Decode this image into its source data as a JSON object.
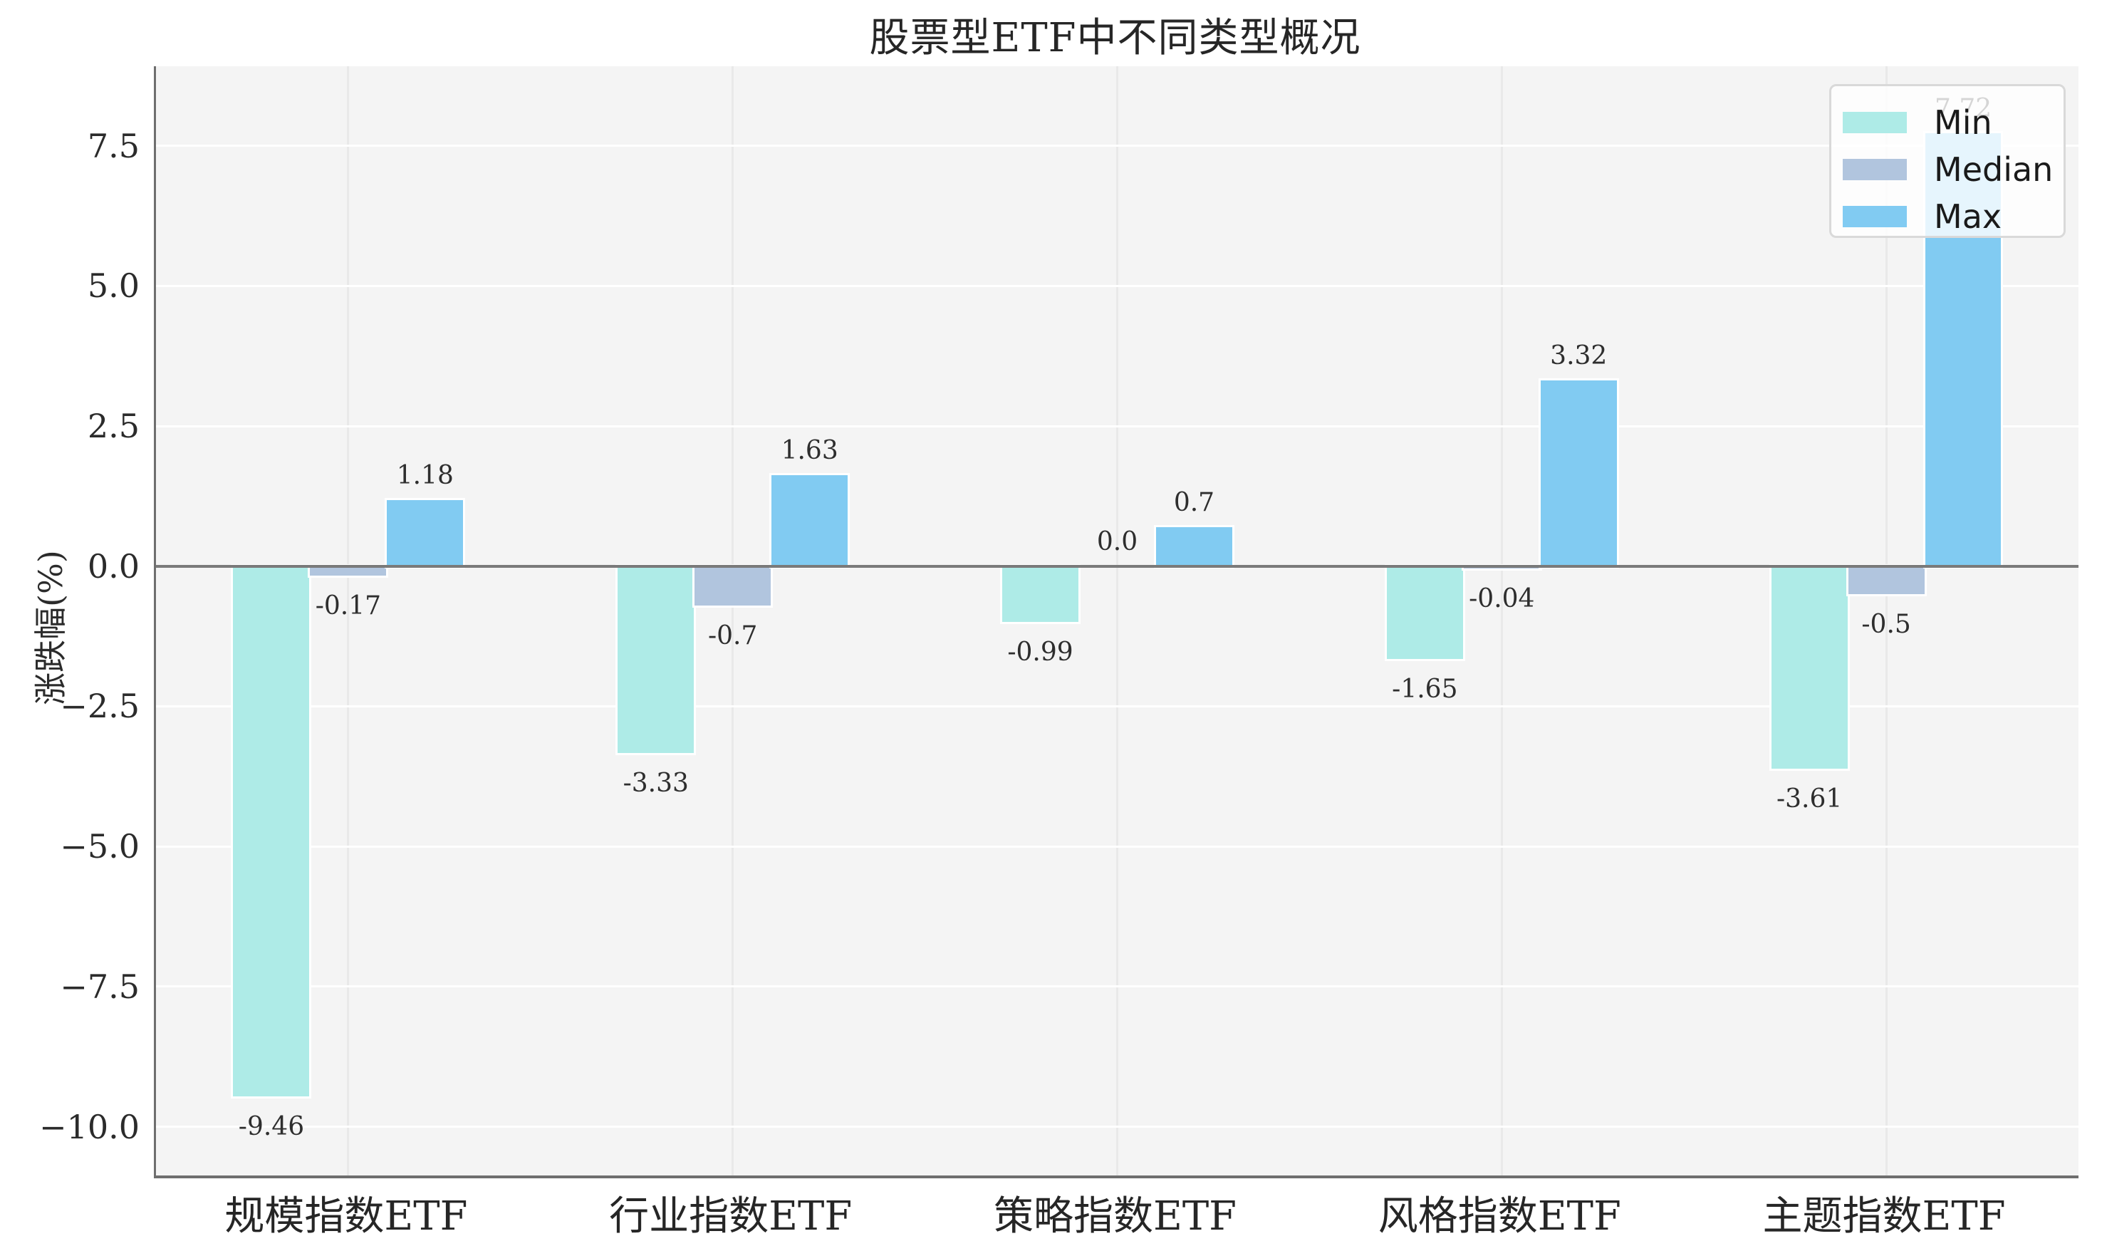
{
  "figure": {
    "background": "#ffffff",
    "plot_background": "#f4f4f4",
    "grid_h_color": "#ffffff",
    "grid_v_color": "#e9e9e9",
    "zero_line_color": "#7a7a7a",
    "spine_color": "#6e6e6e"
  },
  "chart_data": {
    "type": "bar",
    "title": "股票型ETF中不同类型概况",
    "xlabel": "",
    "ylabel": "涨跌幅(%)",
    "categories": [
      "规模指数ETF",
      "行业指数ETF",
      "策略指数ETF",
      "风格指数ETF",
      "主题指数ETF"
    ],
    "series": [
      {
        "name": "Min",
        "color": "#aeebe7",
        "values": [
          -9.46,
          -3.33,
          -0.99,
          -1.65,
          -3.61
        ],
        "labels": [
          "-9.46",
          "-3.33",
          "-0.99",
          "-1.65",
          "-3.61"
        ]
      },
      {
        "name": "Median",
        "color": "#b1c5de",
        "values": [
          -0.17,
          -0.7,
          0.0,
          -0.04,
          -0.5
        ],
        "labels": [
          "-0.17",
          "-0.7",
          "0.0",
          "-0.04",
          "-0.5"
        ]
      },
      {
        "name": "Max",
        "color": "#81cbf2",
        "values": [
          1.18,
          1.63,
          0.7,
          3.32,
          7.72
        ],
        "labels": [
          "1.18",
          "1.63",
          "0.7",
          "3.32",
          "7.72"
        ]
      }
    ],
    "yticks": {
      "values": [
        7.5,
        5.0,
        2.5,
        0.0,
        -2.5,
        -5.0,
        -7.5,
        -10.0
      ],
      "labels": [
        "7.5",
        "5.0",
        "2.5",
        "0.0",
        "−2.5",
        "−5.0",
        "−7.5",
        "−10.0"
      ]
    },
    "ylim": [
      -10.87,
      8.92
    ],
    "grid": {
      "horizontal": true,
      "vertical": true
    },
    "zero_line": true,
    "legend": {
      "position": "upper right",
      "entries": [
        "Min",
        "Median",
        "Max"
      ]
    }
  }
}
